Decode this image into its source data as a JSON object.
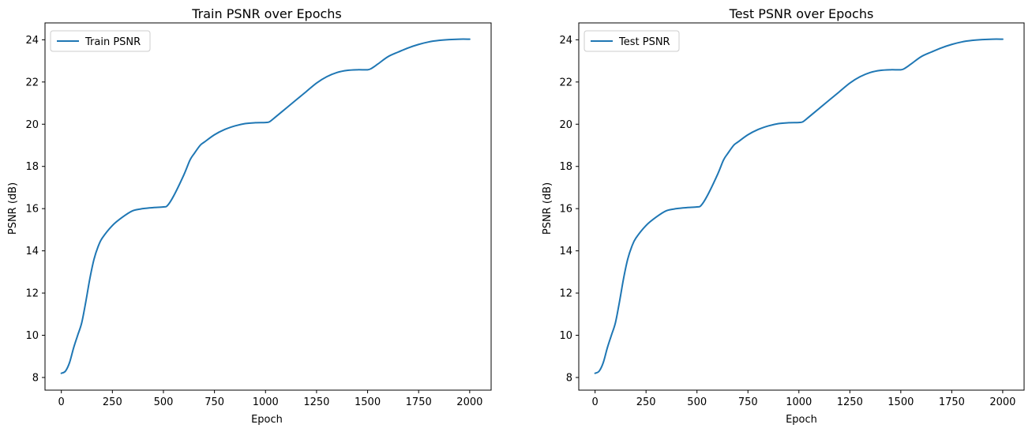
{
  "chart_data": [
    {
      "type": "line",
      "title": "Train PSNR over Epochs",
      "xlabel": "Epoch",
      "ylabel": "PSNR (dB)",
      "xlim": [
        -80,
        2105
      ],
      "ylim": [
        7.4,
        24.8
      ],
      "xticks": [
        0,
        250,
        500,
        750,
        1000,
        1250,
        1500,
        1750,
        2000
      ],
      "yticks": [
        8,
        10,
        12,
        14,
        16,
        18,
        20,
        22,
        24
      ],
      "grid": false,
      "legend_position": "upper left",
      "series": [
        {
          "name": "Train PSNR",
          "color": "#1f77b4",
          "x": [
            0,
            20,
            40,
            60,
            80,
            100,
            120,
            140,
            160,
            180,
            200,
            250,
            300,
            350,
            400,
            450,
            500,
            520,
            550,
            600,
            630,
            650,
            680,
            700,
            750,
            800,
            850,
            900,
            950,
            1000,
            1020,
            1050,
            1100,
            1150,
            1200,
            1250,
            1300,
            1350,
            1400,
            1450,
            1500,
            1520,
            1550,
            1600,
            1650,
            1700,
            1750,
            1800,
            1850,
            1900,
            1950,
            2000
          ],
          "y": [
            8.2,
            8.3,
            8.7,
            9.4,
            10.0,
            10.6,
            11.6,
            12.7,
            13.6,
            14.2,
            14.6,
            15.2,
            15.6,
            15.9,
            16.0,
            16.05,
            16.08,
            16.15,
            16.6,
            17.6,
            18.3,
            18.6,
            19.0,
            19.15,
            19.5,
            19.75,
            19.92,
            20.03,
            20.07,
            20.08,
            20.12,
            20.35,
            20.75,
            21.15,
            21.55,
            21.95,
            22.25,
            22.45,
            22.55,
            22.58,
            22.58,
            22.65,
            22.85,
            23.2,
            23.42,
            23.62,
            23.78,
            23.9,
            23.97,
            24.01,
            24.03,
            24.03
          ]
        }
      ]
    },
    {
      "type": "line",
      "title": "Test PSNR over Epochs",
      "xlabel": "Epoch",
      "ylabel": "PSNR (dB)",
      "xlim": [
        -80,
        2105
      ],
      "ylim": [
        7.4,
        24.8
      ],
      "xticks": [
        0,
        250,
        500,
        750,
        1000,
        1250,
        1500,
        1750,
        2000
      ],
      "yticks": [
        8,
        10,
        12,
        14,
        16,
        18,
        20,
        22,
        24
      ],
      "grid": false,
      "legend_position": "upper left",
      "series": [
        {
          "name": "Test PSNR",
          "color": "#1f77b4",
          "x": [
            0,
            20,
            40,
            60,
            80,
            100,
            120,
            140,
            160,
            180,
            200,
            250,
            300,
            350,
            400,
            450,
            500,
            520,
            550,
            600,
            630,
            650,
            680,
            700,
            750,
            800,
            850,
            900,
            950,
            1000,
            1020,
            1050,
            1100,
            1150,
            1200,
            1250,
            1300,
            1350,
            1400,
            1450,
            1500,
            1520,
            1550,
            1600,
            1650,
            1700,
            1750,
            1800,
            1850,
            1900,
            1950,
            2000
          ],
          "y": [
            8.2,
            8.3,
            8.7,
            9.4,
            10.0,
            10.6,
            11.6,
            12.7,
            13.6,
            14.2,
            14.6,
            15.2,
            15.6,
            15.9,
            16.0,
            16.05,
            16.08,
            16.15,
            16.6,
            17.6,
            18.3,
            18.6,
            19.0,
            19.15,
            19.5,
            19.75,
            19.92,
            20.03,
            20.07,
            20.08,
            20.12,
            20.35,
            20.75,
            21.15,
            21.55,
            21.95,
            22.25,
            22.45,
            22.55,
            22.58,
            22.58,
            22.65,
            22.85,
            23.2,
            23.42,
            23.62,
            23.78,
            23.9,
            23.97,
            24.01,
            24.03,
            24.03
          ]
        }
      ]
    }
  ]
}
